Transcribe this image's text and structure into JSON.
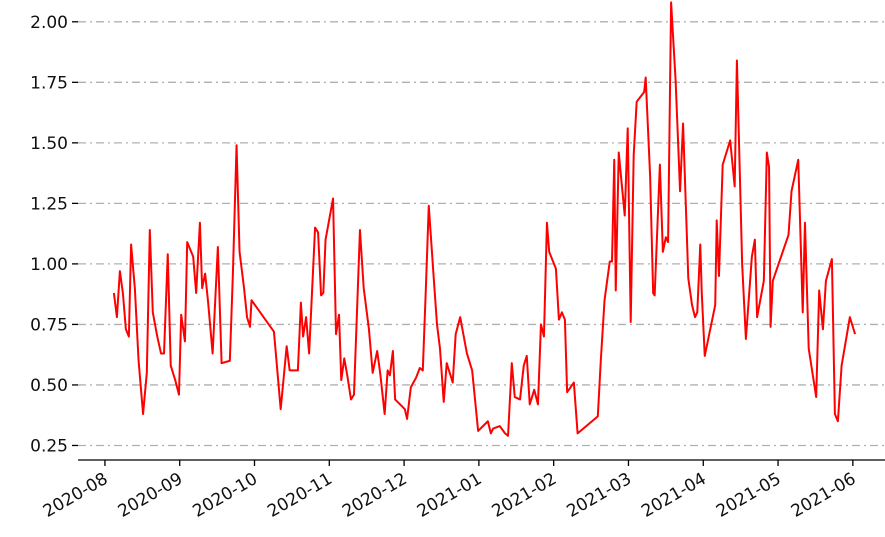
{
  "chart_data": {
    "type": "line",
    "x": [
      0.12,
      0.16,
      0.2,
      0.24,
      0.28,
      0.32,
      0.35,
      0.4,
      0.45,
      0.51,
      0.56,
      0.6,
      0.64,
      0.7,
      0.75,
      0.79,
      0.84,
      0.88,
      0.94,
      0.99,
      1.02,
      1.07,
      1.1,
      1.18,
      1.22,
      1.27,
      1.3,
      1.34,
      1.38,
      1.44,
      1.51,
      1.56,
      1.67,
      1.71,
      1.76,
      1.8,
      1.86,
      1.9,
      1.94,
      1.96,
      2.26,
      2.35,
      2.43,
      2.47,
      2.58,
      2.62,
      2.65,
      2.69,
      2.73,
      2.81,
      2.85,
      2.89,
      2.92,
      2.95,
      3.05,
      3.09,
      3.13,
      3.16,
      3.2,
      3.24,
      3.29,
      3.33,
      3.41,
      3.46,
      3.53,
      3.58,
      3.64,
      3.68,
      3.74,
      3.78,
      3.81,
      3.85,
      3.88,
      4.01,
      4.04,
      4.09,
      4.16,
      4.21,
      4.25,
      4.29,
      4.33,
      4.39,
      4.44,
      4.48,
      4.53,
      4.57,
      4.61,
      4.65,
      4.69,
      4.75,
      4.84,
      4.91,
      4.99,
      5.12,
      5.16,
      5.19,
      5.28,
      5.35,
      5.39,
      5.44,
      5.48,
      5.55,
      5.6,
      5.64,
      5.68,
      5.74,
      5.79,
      5.83,
      5.87,
      5.91,
      5.94,
      6.03,
      6.07,
      6.11,
      6.15,
      6.18,
      6.27,
      6.32,
      6.59,
      6.63,
      6.68,
      6.75,
      6.78,
      6.81,
      6.83,
      6.87,
      6.95,
      6.99,
      7.03,
      7.07,
      7.11,
      7.21,
      7.23,
      7.29,
      7.33,
      7.35,
      7.42,
      7.46,
      7.5,
      7.53,
      7.57,
      7.63,
      7.69,
      7.73,
      7.8,
      7.85,
      7.89,
      7.92,
      7.96,
      7.98,
      8.02,
      8.1,
      8.16,
      8.18,
      8.21,
      8.26,
      8.36,
      8.42,
      8.45,
      8.52,
      8.57,
      8.65,
      8.69,
      8.72,
      8.81,
      8.85,
      8.88,
      8.9,
      8.93,
      9.14,
      9.18,
      9.27,
      9.33,
      9.36,
      9.41,
      9.51,
      9.55,
      9.6,
      9.64,
      9.72,
      9.76,
      9.8,
      9.85,
      9.96,
      10.03
    ],
    "series": [
      {
        "color": "#ff0000",
        "values": [
          0.88,
          0.78,
          0.97,
          0.88,
          0.73,
          0.7,
          1.08,
          0.9,
          0.6,
          0.38,
          0.55,
          1.14,
          0.8,
          0.7,
          0.63,
          0.63,
          1.04,
          0.58,
          0.52,
          0.46,
          0.79,
          0.68,
          1.09,
          1.03,
          0.88,
          1.17,
          0.9,
          0.96,
          0.84,
          0.63,
          1.07,
          0.59,
          0.6,
          0.95,
          1.49,
          1.05,
          0.9,
          0.78,
          0.74,
          0.85,
          0.72,
          0.4,
          0.66,
          0.56,
          0.56,
          0.84,
          0.7,
          0.78,
          0.63,
          1.15,
          1.13,
          0.87,
          0.88,
          1.1,
          1.27,
          0.71,
          0.79,
          0.52,
          0.61,
          0.54,
          0.44,
          0.46,
          1.14,
          0.9,
          0.73,
          0.55,
          0.64,
          0.55,
          0.38,
          0.56,
          0.54,
          0.64,
          0.44,
          0.4,
          0.36,
          0.49,
          0.53,
          0.57,
          0.56,
          0.89,
          1.24,
          0.97,
          0.75,
          0.65,
          0.43,
          0.59,
          0.55,
          0.51,
          0.71,
          0.78,
          0.63,
          0.56,
          0.31,
          0.35,
          0.3,
          0.32,
          0.33,
          0.3,
          0.29,
          0.59,
          0.45,
          0.44,
          0.58,
          0.62,
          0.42,
          0.48,
          0.42,
          0.75,
          0.7,
          1.17,
          1.05,
          0.98,
          0.77,
          0.8,
          0.77,
          0.47,
          0.51,
          0.3,
          0.37,
          0.6,
          0.85,
          1.01,
          1.01,
          1.43,
          0.89,
          1.46,
          1.2,
          1.56,
          0.76,
          1.45,
          1.67,
          1.71,
          1.77,
          1.36,
          0.88,
          0.87,
          1.41,
          1.05,
          1.11,
          1.09,
          2.08,
          1.76,
          1.3,
          1.58,
          0.94,
          0.83,
          0.78,
          0.8,
          1.08,
          0.88,
          0.62,
          0.74,
          0.83,
          1.18,
          0.95,
          1.41,
          1.51,
          1.32,
          1.84,
          1.0,
          0.69,
          1.03,
          1.1,
          0.78,
          0.93,
          1.46,
          1.4,
          0.74,
          0.93,
          1.12,
          1.3,
          1.43,
          0.8,
          1.17,
          0.65,
          0.45,
          0.89,
          0.73,
          0.93,
          1.02,
          0.38,
          0.35,
          0.58,
          0.78,
          0.71
        ]
      }
    ],
    "xlim": [
      -0.36,
      10.43
    ],
    "xticks": [
      {
        "value": 0,
        "label": "2020-08"
      },
      {
        "value": 1,
        "label": "2020-09"
      },
      {
        "value": 2,
        "label": "2020-10"
      },
      {
        "value": 3,
        "label": "2020-11"
      },
      {
        "value": 4,
        "label": "2020-12"
      },
      {
        "value": 5,
        "label": "2021-01"
      },
      {
        "value": 6,
        "label": "2021-02"
      },
      {
        "value": 7,
        "label": "2021-03"
      },
      {
        "value": 8,
        "label": "2021-04"
      },
      {
        "value": 9,
        "label": "2021-05"
      },
      {
        "value": 10,
        "label": "2021-06"
      }
    ],
    "ylim": [
      0.19,
      2.09
    ],
    "yticks": [
      0.25,
      {
        "value": 0.5,
        "label": "0.50"
      },
      0.75,
      {
        "value": 1,
        "label": "1.00"
      },
      1.25,
      {
        "value": 1.5,
        "label": "1.50"
      },
      1.75,
      {
        "value": 2,
        "label": "2.00"
      }
    ],
    "grid": true
  }
}
